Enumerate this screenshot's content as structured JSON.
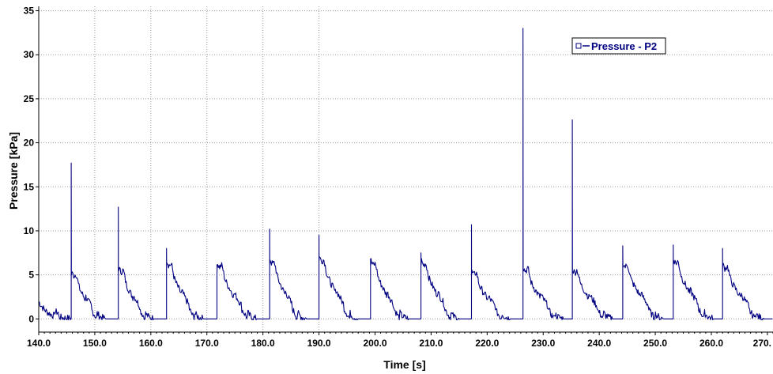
{
  "chart_data": {
    "type": "line",
    "xlabel": "Time [s]",
    "ylabel": "Pressure [kPa]",
    "xlim": [
      140,
      271
    ],
    "ylim": [
      -1.5,
      35.5
    ],
    "x_ticks": [
      140,
      150,
      160,
      170,
      180,
      190,
      200,
      210,
      220,
      230,
      240,
      250,
      260,
      270
    ],
    "x_tick_labels": [
      "140.0",
      "150.0",
      "160.0",
      "170.0",
      "180.0",
      "190.0",
      "200.0",
      "210.0",
      "220.0",
      "230.0",
      "240.0",
      "250.0",
      "260.0",
      "270."
    ],
    "y_ticks": [
      0,
      5,
      10,
      15,
      20,
      25,
      30,
      35
    ],
    "y_tick_labels": [
      "0",
      "5",
      "10",
      "15",
      "20",
      "25",
      "30",
      "35"
    ],
    "vertical_grid_x": [
      150,
      160,
      170,
      180,
      190
    ],
    "grid": "dotted",
    "legend": {
      "position": "top-right",
      "entries": [
        "Pressure - P2"
      ]
    },
    "series_color": "#000080",
    "series": [
      {
        "name": "Pressure - P2",
        "spikes": [
          {
            "t": 145.8,
            "spike": 17.7,
            "level": 5.5,
            "width": 4.6
          },
          {
            "t": 154.2,
            "spike": 12.7,
            "level": 6.0,
            "width": 4.8
          },
          {
            "t": 162.8,
            "spike": 8.0,
            "level": 6.8,
            "width": 5.0
          },
          {
            "t": 171.8,
            "spike": 5.0,
            "level": 6.5,
            "width": 5.5
          },
          {
            "t": 181.2,
            "spike": 10.2,
            "level": 7.0,
            "width": 5.0
          },
          {
            "t": 190.0,
            "spike": 9.5,
            "level": 7.3,
            "width": 5.5
          },
          {
            "t": 199.2,
            "spike": 6.8,
            "level": 6.8,
            "width": 5.2
          },
          {
            "t": 208.2,
            "spike": 7.5,
            "level": 6.8,
            "width": 5.3
          },
          {
            "t": 217.2,
            "spike": 10.7,
            "level": 5.5,
            "width": 5.4
          },
          {
            "t": 226.4,
            "spike": 33.0,
            "level": 6.0,
            "width": 5.6
          },
          {
            "t": 235.2,
            "spike": 22.6,
            "level": 5.8,
            "width": 5.6
          },
          {
            "t": 244.2,
            "spike": 8.3,
            "level": 6.5,
            "width": 5.7
          },
          {
            "t": 253.2,
            "spike": 8.4,
            "level": 7.0,
            "width": 5.6
          },
          {
            "t": 262.0,
            "spike": 8.0,
            "level": 6.3,
            "width": 5.8
          }
        ],
        "initial": {
          "t": 140.0,
          "value": 2.0
        }
      }
    ]
  }
}
